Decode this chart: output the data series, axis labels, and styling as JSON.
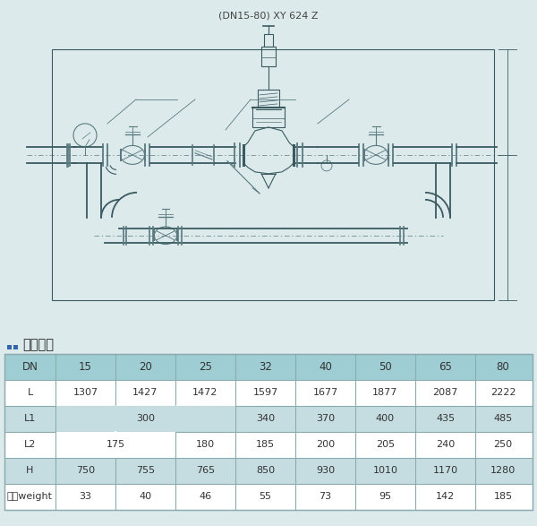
{
  "title": "(DN15-80) XY 624 Z",
  "section_title": "基本尺寸",
  "fig_bg": "#ddeaec",
  "diag_bg": "#ccdfe3",
  "table_area_bg": "#e8eeef",
  "line_color": "#5a7a80",
  "line_color_dark": "#3a5a60",
  "table_border": "#8aabaf",
  "table_header_bg": "#9ecdd4",
  "table_row_odd_bg": "#c5dde1",
  "table_row_even_bg": "#ffffff",
  "icon_color": "#3366aa",
  "text_color": "#333333",
  "title_color": "#444444",
  "table_headers": [
    "DN",
    "15",
    "20",
    "25",
    "32",
    "40",
    "50",
    "65",
    "80"
  ],
  "table_rows": [
    [
      "L",
      "1307",
      "1427",
      "1472",
      "1597",
      "1677",
      "1877",
      "2087",
      "2222"
    ],
    [
      "L1",
      "300",
      "",
      "",
      "340",
      "370",
      "400",
      "435",
      "485"
    ],
    [
      "L2",
      "175",
      "",
      "180",
      "185",
      "200",
      "205",
      "240",
      "250"
    ],
    [
      "H",
      "750",
      "755",
      "765",
      "850",
      "930",
      "1010",
      "1170",
      "1280"
    ],
    [
      "重量weight",
      "33",
      "40",
      "46",
      "55",
      "73",
      "95",
      "142",
      "185"
    ]
  ]
}
